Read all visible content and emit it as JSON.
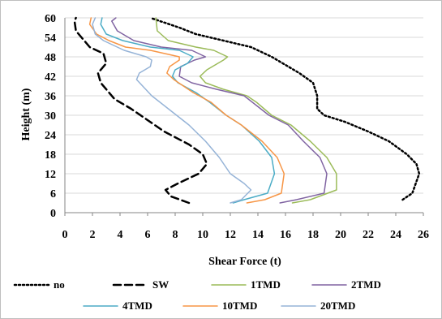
{
  "chart_data": {
    "type": "line",
    "xlabel": "Shear Force (t)",
    "ylabel": "Height (m)",
    "xlim": [
      0,
      26
    ],
    "ylim": [
      0,
      60
    ],
    "x_ticks": [
      "0",
      "2",
      "4",
      "6",
      "8",
      "10",
      "12",
      "14",
      "16",
      "18",
      "20",
      "22",
      "24",
      "26"
    ],
    "y_ticks": [
      "0",
      "6",
      "12",
      "18",
      "24",
      "30",
      "36",
      "42",
      "48",
      "54",
      "60"
    ],
    "grid": "horizontal",
    "legend_position": "bottom",
    "series": [
      {
        "name": "no",
        "color": "#000000",
        "style": "dotted",
        "points": [
          [
            24.5,
            4
          ],
          [
            25.2,
            6
          ],
          [
            25.7,
            12
          ],
          [
            25.5,
            15
          ],
          [
            24.8,
            18
          ],
          [
            23.5,
            22
          ],
          [
            22.0,
            25
          ],
          [
            20.3,
            28
          ],
          [
            18.8,
            30
          ],
          [
            18.3,
            32
          ],
          [
            18.3,
            36
          ],
          [
            18.0,
            40
          ],
          [
            17.0,
            43
          ],
          [
            15.0,
            48
          ],
          [
            13.5,
            51
          ],
          [
            11.5,
            53
          ],
          [
            9.5,
            55
          ],
          [
            8.3,
            57
          ],
          [
            6.9,
            59
          ],
          [
            6.2,
            60
          ]
        ]
      },
      {
        "name": "SW",
        "color": "#000000",
        "style": "dashed",
        "points": [
          [
            9.0,
            3
          ],
          [
            7.7,
            5
          ],
          [
            7.3,
            7
          ],
          [
            8.2,
            9
          ],
          [
            9.7,
            12
          ],
          [
            10.3,
            15
          ],
          [
            10.0,
            18
          ],
          [
            9.0,
            21
          ],
          [
            7.2,
            25
          ],
          [
            4.8,
            32
          ],
          [
            3.6,
            35
          ],
          [
            2.6,
            40
          ],
          [
            2.4,
            43
          ],
          [
            3.0,
            46
          ],
          [
            2.8,
            49
          ],
          [
            1.8,
            51
          ],
          [
            1.2,
            54
          ],
          [
            0.8,
            56
          ],
          [
            0.7,
            59
          ],
          [
            0.8,
            60
          ]
        ]
      },
      {
        "name": "1TMD",
        "color": "#9BBB59",
        "style": "solid",
        "points": [
          [
            16.5,
            3
          ],
          [
            17.8,
            4
          ],
          [
            19.7,
            7
          ],
          [
            19.7,
            12
          ],
          [
            19.0,
            17
          ],
          [
            17.8,
            22
          ],
          [
            16.4,
            27
          ],
          [
            15.0,
            30
          ],
          [
            13.9,
            34
          ],
          [
            13.2,
            36
          ],
          [
            11.5,
            38
          ],
          [
            10.2,
            40
          ],
          [
            9.8,
            42
          ],
          [
            10.3,
            44
          ],
          [
            11.5,
            47
          ],
          [
            11.8,
            48
          ],
          [
            10.8,
            50
          ],
          [
            9.5,
            51
          ],
          [
            7.5,
            53
          ],
          [
            6.7,
            56
          ],
          [
            6.6,
            60
          ]
        ]
      },
      {
        "name": "2TMD",
        "color": "#8064A2",
        "style": "solid",
        "points": [
          [
            15.6,
            3
          ],
          [
            16.8,
            4
          ],
          [
            18.8,
            6
          ],
          [
            19.0,
            12
          ],
          [
            18.5,
            17
          ],
          [
            17.3,
            22
          ],
          [
            16.2,
            27
          ],
          [
            14.8,
            30
          ],
          [
            13.9,
            33
          ],
          [
            13.0,
            36
          ],
          [
            11.0,
            38
          ],
          [
            9.2,
            40
          ],
          [
            8.3,
            42
          ],
          [
            8.4,
            45
          ],
          [
            9.4,
            47
          ],
          [
            10.2,
            48
          ],
          [
            9.2,
            50
          ],
          [
            7.0,
            51
          ],
          [
            5.0,
            53
          ],
          [
            3.8,
            56
          ],
          [
            3.4,
            59
          ],
          [
            3.7,
            60
          ]
        ]
      },
      {
        "name": "4TMD",
        "color": "#4BACC6",
        "style": "solid",
        "points": [
          [
            12.2,
            3
          ],
          [
            13.0,
            4
          ],
          [
            14.7,
            6
          ],
          [
            15.2,
            12
          ],
          [
            15.0,
            17
          ],
          [
            14.1,
            22
          ],
          [
            12.8,
            27
          ],
          [
            11.7,
            30
          ],
          [
            10.5,
            34
          ],
          [
            9.5,
            37
          ],
          [
            8.2,
            40
          ],
          [
            7.8,
            42
          ],
          [
            8.0,
            44
          ],
          [
            8.9,
            46
          ],
          [
            9.3,
            48
          ],
          [
            8.3,
            50
          ],
          [
            6.2,
            51
          ],
          [
            4.2,
            53
          ],
          [
            3.0,
            55
          ],
          [
            2.6,
            58
          ],
          [
            2.7,
            60
          ]
        ]
      },
      {
        "name": "10TMD",
        "color": "#F79646",
        "style": "solid",
        "points": [
          [
            13.2,
            3
          ],
          [
            14.5,
            4
          ],
          [
            15.7,
            6
          ],
          [
            15.9,
            12
          ],
          [
            15.4,
            17
          ],
          [
            14.3,
            22
          ],
          [
            12.8,
            27
          ],
          [
            11.7,
            30
          ],
          [
            10.6,
            34
          ],
          [
            9.3,
            37
          ],
          [
            7.9,
            41
          ],
          [
            7.4,
            43
          ],
          [
            7.6,
            45
          ],
          [
            8.3,
            47
          ],
          [
            8.3,
            48
          ],
          [
            6.2,
            50
          ],
          [
            4.4,
            51
          ],
          [
            3.2,
            53
          ],
          [
            2.3,
            55
          ],
          [
            1.8,
            58
          ],
          [
            1.9,
            60
          ]
        ]
      },
      {
        "name": "20TMD",
        "color": "#95B3D7",
        "style": "solid",
        "points": [
          [
            12.0,
            3
          ],
          [
            12.8,
            4
          ],
          [
            13.5,
            7
          ],
          [
            13.0,
            9
          ],
          [
            12.0,
            12
          ],
          [
            11.2,
            17
          ],
          [
            10.2,
            22
          ],
          [
            9.0,
            27
          ],
          [
            7.8,
            31
          ],
          [
            6.3,
            36
          ],
          [
            5.2,
            41
          ],
          [
            5.4,
            43
          ],
          [
            6.2,
            45
          ],
          [
            6.3,
            47
          ],
          [
            5.9,
            48
          ],
          [
            4.3,
            50
          ],
          [
            2.8,
            53
          ],
          [
            2.2,
            55
          ],
          [
            2.0,
            58
          ],
          [
            2.2,
            60
          ]
        ]
      }
    ]
  }
}
